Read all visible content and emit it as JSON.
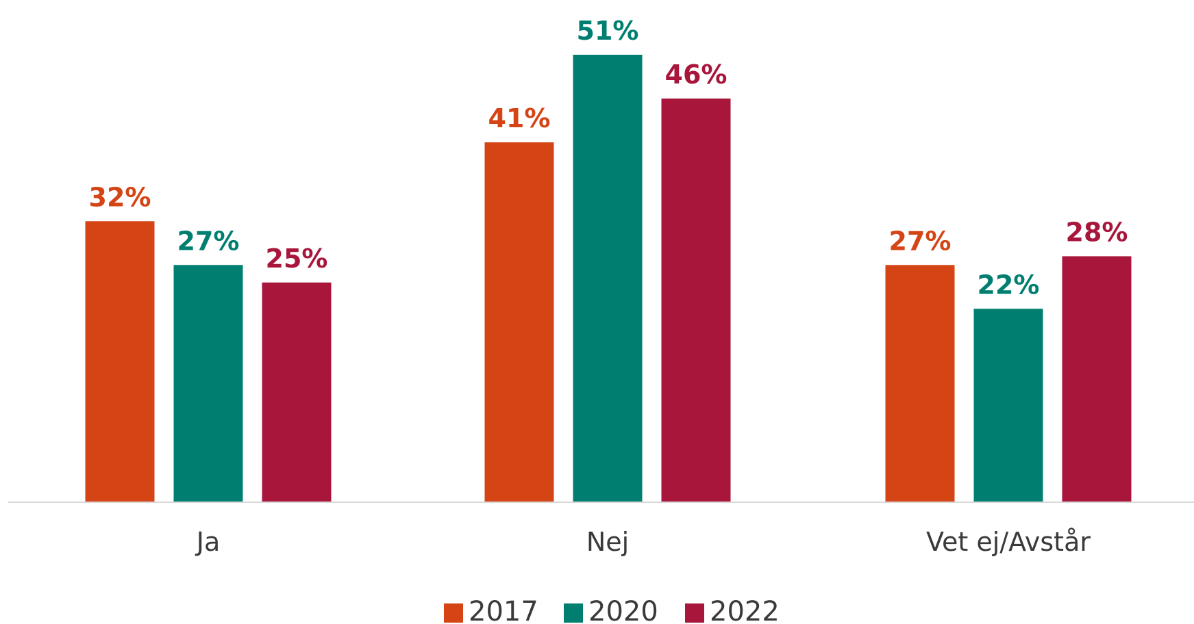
{
  "chart_data": {
    "type": "bar",
    "categories": [
      "Ja",
      "Nej",
      "Vet ej/Avstår"
    ],
    "series": [
      {
        "name": "2017",
        "values": [
          32,
          41,
          27
        ],
        "labels": [
          "32%",
          "41%",
          "27%"
        ],
        "color": "#d54415"
      },
      {
        "name": "2020",
        "values": [
          27,
          51,
          22
        ],
        "labels": [
          "27%",
          "51%",
          "22%"
        ],
        "color": "#007f71"
      },
      {
        "name": "2022",
        "values": [
          25,
          46,
          28
        ],
        "labels": [
          "25%",
          "46%",
          "28%"
        ],
        "color": "#a8163c"
      }
    ],
    "ylim": [
      0,
      51
    ],
    "grid": false,
    "legend_position": "bottom",
    "axis_color": "#d9d9d9"
  }
}
